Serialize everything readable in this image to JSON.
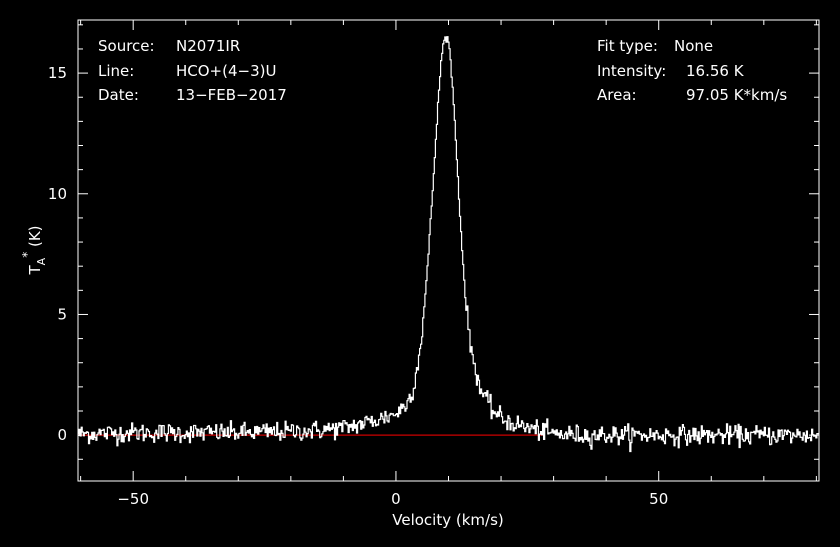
{
  "colors": {
    "background": "#000000",
    "foreground": "#ffffff",
    "baseline": "#cc0000"
  },
  "header": {
    "source_label": "Source:",
    "source_value": "N2071IR",
    "line_label": "Line:",
    "line_value": "HCO+(4−3)U",
    "date_label": "Date:",
    "date_value": "13−FEB−2017",
    "fit_label": "Fit type:",
    "fit_value": "None",
    "intensity_label": "Intensity:",
    "intensity_value": "16.56 K",
    "area_label": "Area:",
    "area_value": "97.05 K*km/s"
  },
  "chart_data": {
    "type": "line",
    "title": "",
    "xlabel": "Velocity (km/s)",
    "ylabel": "T_A* (K)",
    "xlim": [
      -60.5,
      80.5
    ],
    "ylim": [
      -1.9,
      17.2
    ],
    "xticks": [
      -50,
      0,
      50
    ],
    "xtick_labels": [
      "−50",
      "0",
      "50"
    ],
    "yticks": [
      0,
      5,
      10,
      15
    ],
    "ytick_labels": [
      "0",
      "5",
      "10",
      "15"
    ],
    "grid": false,
    "baseline": {
      "name": "",
      "y": 0,
      "x": [
        -60.5,
        28
      ]
    },
    "series": [
      {
        "name": "",
        "peak_velocity": 9.5,
        "peak_intensity": 16.56,
        "noise_rms": 0.2,
        "x": [
          -60,
          -50,
          -40,
          -30,
          -20,
          -15,
          -10,
          -8,
          -6,
          -4,
          -2,
          0,
          1,
          2,
          3,
          4,
          5,
          6,
          7,
          8,
          8.5,
          9,
          9.5,
          10,
          10.5,
          11,
          12,
          13,
          14,
          15,
          16,
          18,
          20,
          22,
          25,
          28,
          30,
          35,
          40,
          50,
          60,
          70,
          80
        ],
        "y": [
          0.05,
          0.1,
          0.1,
          0.1,
          0.15,
          0.2,
          0.3,
          0.4,
          0.5,
          0.6,
          0.75,
          0.9,
          1.1,
          1.3,
          1.8,
          2.8,
          4.5,
          7.2,
          10.5,
          14.0,
          15.5,
          16.3,
          16.56,
          16.2,
          15.0,
          13.4,
          9.5,
          6.0,
          3.8,
          2.8,
          1.9,
          1.1,
          0.7,
          0.5,
          0.3,
          0.15,
          0.05,
          0.0,
          0.0,
          0.0,
          0.0,
          0.0,
          0.0
        ]
      }
    ]
  }
}
